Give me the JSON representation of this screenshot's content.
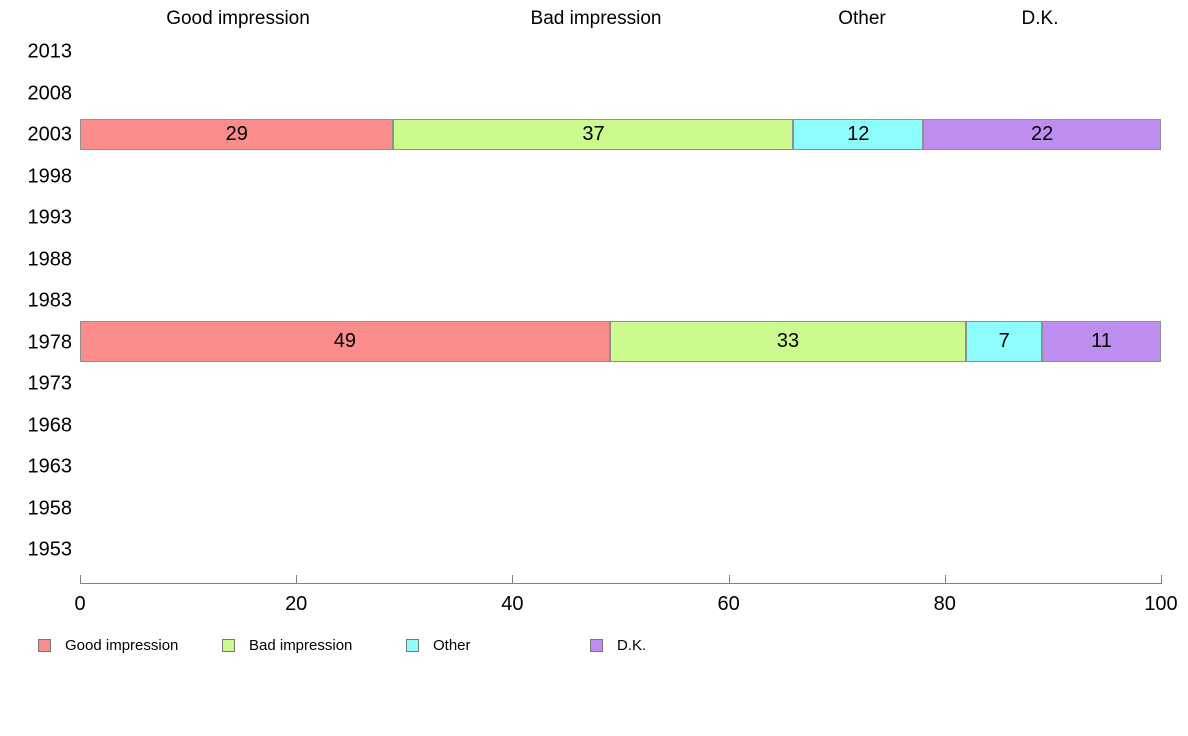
{
  "chart_data": {
    "type": "bar",
    "orientation": "horizontal",
    "stacked": true,
    "title": "",
    "xlabel": "",
    "ylabel": "",
    "xlim": [
      0,
      100
    ],
    "x_ticks": [
      "0",
      "20",
      "40",
      "60",
      "80",
      "100"
    ],
    "grid": false,
    "legend_position": "bottom",
    "column_headers": [
      "Good impression",
      "Bad impression",
      "Other",
      "D.K."
    ],
    "categories": [
      "2013",
      "2008",
      "2003",
      "1998",
      "1993",
      "1988",
      "1983",
      "1978",
      "1973",
      "1968",
      "1963",
      "1958",
      "1953"
    ],
    "series": [
      {
        "name": "Good impression",
        "color": "#FB8C8C",
        "values": [
          null,
          null,
          29,
          null,
          null,
          null,
          null,
          49,
          null,
          null,
          null,
          null,
          null
        ]
      },
      {
        "name": "Bad impression",
        "color": "#CDFA8E",
        "values": [
          null,
          null,
          37,
          null,
          null,
          null,
          null,
          33,
          null,
          null,
          null,
          null,
          null
        ]
      },
      {
        "name": "Other",
        "color": "#8CFCFC",
        "values": [
          null,
          null,
          12,
          null,
          null,
          null,
          null,
          7,
          null,
          null,
          null,
          null,
          null
        ]
      },
      {
        "name": "D.K.",
        "color": "#BD8DF0",
        "values": [
          null,
          null,
          22,
          null,
          null,
          null,
          null,
          11,
          null,
          null,
          null,
          null,
          null
        ]
      }
    ],
    "legend": [
      "Good impression",
      "Bad impression",
      "Other",
      "D.K."
    ]
  }
}
